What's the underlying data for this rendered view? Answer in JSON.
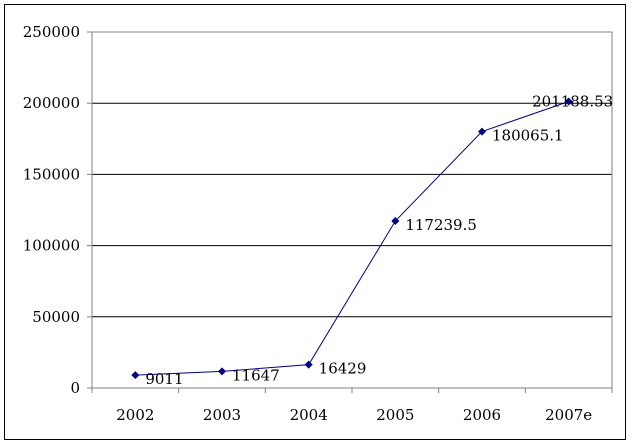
{
  "chart_data": {
    "type": "line",
    "categories": [
      "2002",
      "2003",
      "2004",
      "2005",
      "2006",
      "2007e"
    ],
    "series": [
      {
        "values": [
          9011,
          11647,
          16429,
          117239.5,
          180065.1,
          201188.53
        ],
        "data_labels": [
          "9011",
          "11647",
          "16429",
          "117239.5",
          "180065.1",
          "201188.53"
        ],
        "color": "#000080"
      }
    ],
    "ylim": [
      0,
      250000
    ],
    "yticks": [
      "0",
      "50000",
      "100000",
      "150000",
      "200000",
      "250000"
    ],
    "grid": "horizontal",
    "legend": "none",
    "marker": "diamond"
  }
}
